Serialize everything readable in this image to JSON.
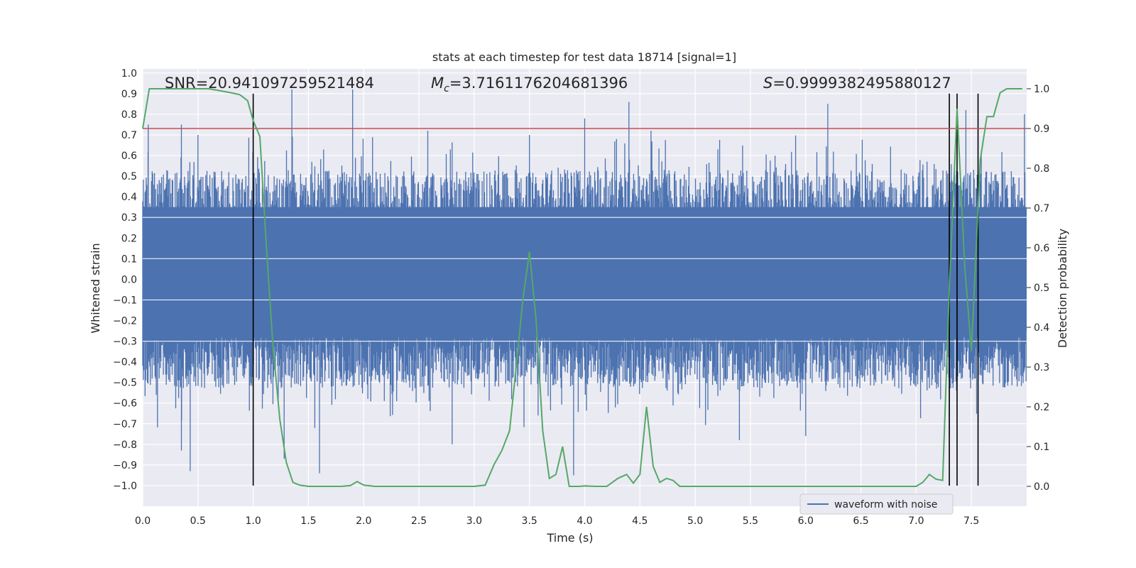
{
  "chart_data": {
    "type": "line",
    "title": "stats at each timestep for test data 18714 [signal=1]",
    "xlabel": "Time (s)",
    "ylabel": "Whitened strain",
    "y2label": "Detection probability",
    "xlim": [
      0.0,
      8.0
    ],
    "ylim": [
      -1.1,
      1.02
    ],
    "y2lim": [
      -0.05,
      1.05
    ],
    "xticks": [
      "0.0",
      "0.5",
      "1.0",
      "1.5",
      "2.0",
      "2.5",
      "3.0",
      "3.5",
      "4.0",
      "4.5",
      "5.0",
      "5.5",
      "6.0",
      "6.5",
      "7.0",
      "7.5"
    ],
    "xtick_values": [
      0.0,
      0.5,
      1.0,
      1.5,
      2.0,
      2.5,
      3.0,
      3.5,
      4.0,
      4.5,
      5.0,
      5.5,
      6.0,
      6.5,
      7.0,
      7.5
    ],
    "yticks": [
      "1.0",
      "0.9",
      "0.8",
      "0.7",
      "0.6",
      "0.5",
      "0.4",
      "0.3",
      "0.2",
      "0.1",
      "0.0",
      "−0.1",
      "−0.2",
      "−0.3",
      "−0.4",
      "−0.5",
      "−0.6",
      "−0.7",
      "−0.8",
      "−0.9",
      "−1.0"
    ],
    "ytick_values": [
      1.0,
      0.9,
      0.8,
      0.7,
      0.6,
      0.5,
      0.4,
      0.3,
      0.2,
      0.1,
      0.0,
      -0.1,
      -0.2,
      -0.3,
      -0.4,
      -0.5,
      -0.6,
      -0.7,
      -0.8,
      -0.9,
      -1.0
    ],
    "y2ticks": [
      "1.0",
      "0.9",
      "0.8",
      "0.7",
      "0.6",
      "0.5",
      "0.4",
      "0.3",
      "0.2",
      "0.1",
      "0.0"
    ],
    "y2tick_values": [
      1.0,
      0.9,
      0.8,
      0.7,
      0.6,
      0.5,
      0.4,
      0.3,
      0.2,
      0.1,
      0.0
    ],
    "annotations": {
      "snr": "SNR=20.941097259521484",
      "mc_symbol": "M",
      "mc_sub": "c",
      "mc_value": "=3.7161176204681396",
      "s_symbol": "S",
      "s_value": "=0.9999382495880127"
    },
    "legend": {
      "label": "waveform with noise",
      "placement": "lower-right"
    },
    "series": [
      {
        "name": "waveform with noise",
        "kind": "noise-band",
        "axis": "left",
        "color": "#4c72b0",
        "core_range": [
          -0.25,
          0.35
        ],
        "envelope_peaks_top": [
          [
            0.05,
            0.75
          ],
          [
            0.35,
            0.75
          ],
          [
            0.5,
            0.7
          ],
          [
            1.35,
            0.92
          ],
          [
            1.9,
            0.92
          ],
          [
            2.58,
            0.72
          ],
          [
            3.5,
            0.7
          ],
          [
            4.0,
            0.78
          ],
          [
            4.4,
            0.86
          ],
          [
            4.6,
            0.72
          ],
          [
            6.2,
            0.85
          ],
          [
            7.45,
            0.82
          ],
          [
            7.98,
            0.8
          ]
        ],
        "envelope_peaks_bottom": [
          [
            0.35,
            -0.83
          ],
          [
            0.43,
            -0.93
          ],
          [
            1.28,
            -0.87
          ],
          [
            1.6,
            -0.94
          ],
          [
            2.8,
            -0.8
          ],
          [
            3.9,
            -0.95
          ],
          [
            5.4,
            -0.78
          ],
          [
            6.0,
            -0.76
          ],
          [
            7.3,
            -0.75
          ]
        ]
      },
      {
        "name": "",
        "kind": "probability",
        "axis": "right",
        "color": "#55a868",
        "x": [
          0.0,
          0.06,
          0.2,
          0.4,
          0.6,
          0.8,
          0.88,
          0.95,
          1.0,
          1.06,
          1.12,
          1.18,
          1.24,
          1.3,
          1.36,
          1.42,
          1.5,
          1.6,
          1.7,
          1.8,
          1.88,
          1.94,
          2.0,
          2.1,
          2.2,
          2.3,
          2.4,
          2.5,
          2.6,
          2.7,
          2.8,
          2.9,
          3.0,
          3.1,
          3.18,
          3.25,
          3.32,
          3.38,
          3.44,
          3.5,
          3.56,
          3.62,
          3.68,
          3.74,
          3.8,
          3.86,
          3.9,
          3.95,
          4.0,
          4.1,
          4.2,
          4.3,
          4.38,
          4.44,
          4.5,
          4.56,
          4.62,
          4.68,
          4.74,
          4.8,
          4.86,
          4.92,
          5.0,
          5.2,
          5.4,
          5.6,
          5.8,
          6.0,
          6.2,
          6.4,
          6.6,
          6.8,
          7.0,
          7.06,
          7.12,
          7.18,
          7.24,
          7.3,
          7.37,
          7.44,
          7.5,
          7.58,
          7.64,
          7.7,
          7.76,
          7.82,
          7.88,
          7.96
        ],
        "y": [
          0.9,
          1.0,
          1.0,
          1.0,
          1.0,
          0.99,
          0.985,
          0.97,
          0.92,
          0.88,
          0.6,
          0.35,
          0.17,
          0.06,
          0.01,
          0.003,
          0.0,
          0.0,
          0.0,
          0.0,
          0.002,
          0.012,
          0.003,
          0.0,
          0.0,
          0.0,
          0.0,
          0.0,
          0.0,
          0.0,
          0.0,
          0.0,
          0.0,
          0.003,
          0.055,
          0.09,
          0.14,
          0.3,
          0.47,
          0.59,
          0.42,
          0.14,
          0.02,
          0.03,
          0.1,
          0.0,
          0.0,
          0.0,
          0.001,
          0.0,
          0.0,
          0.02,
          0.03,
          0.008,
          0.03,
          0.2,
          0.05,
          0.01,
          0.02,
          0.015,
          0.0,
          0.0,
          0.0,
          0.0,
          0.0,
          0.0,
          0.0,
          0.0,
          0.0,
          0.0,
          0.0,
          0.0,
          0.0,
          0.01,
          0.03,
          0.018,
          0.015,
          0.5,
          0.95,
          0.55,
          0.34,
          0.82,
          0.93,
          0.93,
          0.99,
          1.0,
          1.0,
          1.0
        ]
      },
      {
        "name": "",
        "kind": "threshold",
        "axis": "right",
        "color": "#c44e52",
        "y": 0.9
      },
      {
        "name": "",
        "kind": "vertical-markers",
        "axis": "left",
        "color": "#000000",
        "x": [
          1.0,
          7.3,
          7.37,
          7.56
        ],
        "y_range": [
          -1.0,
          0.9
        ]
      }
    ]
  }
}
